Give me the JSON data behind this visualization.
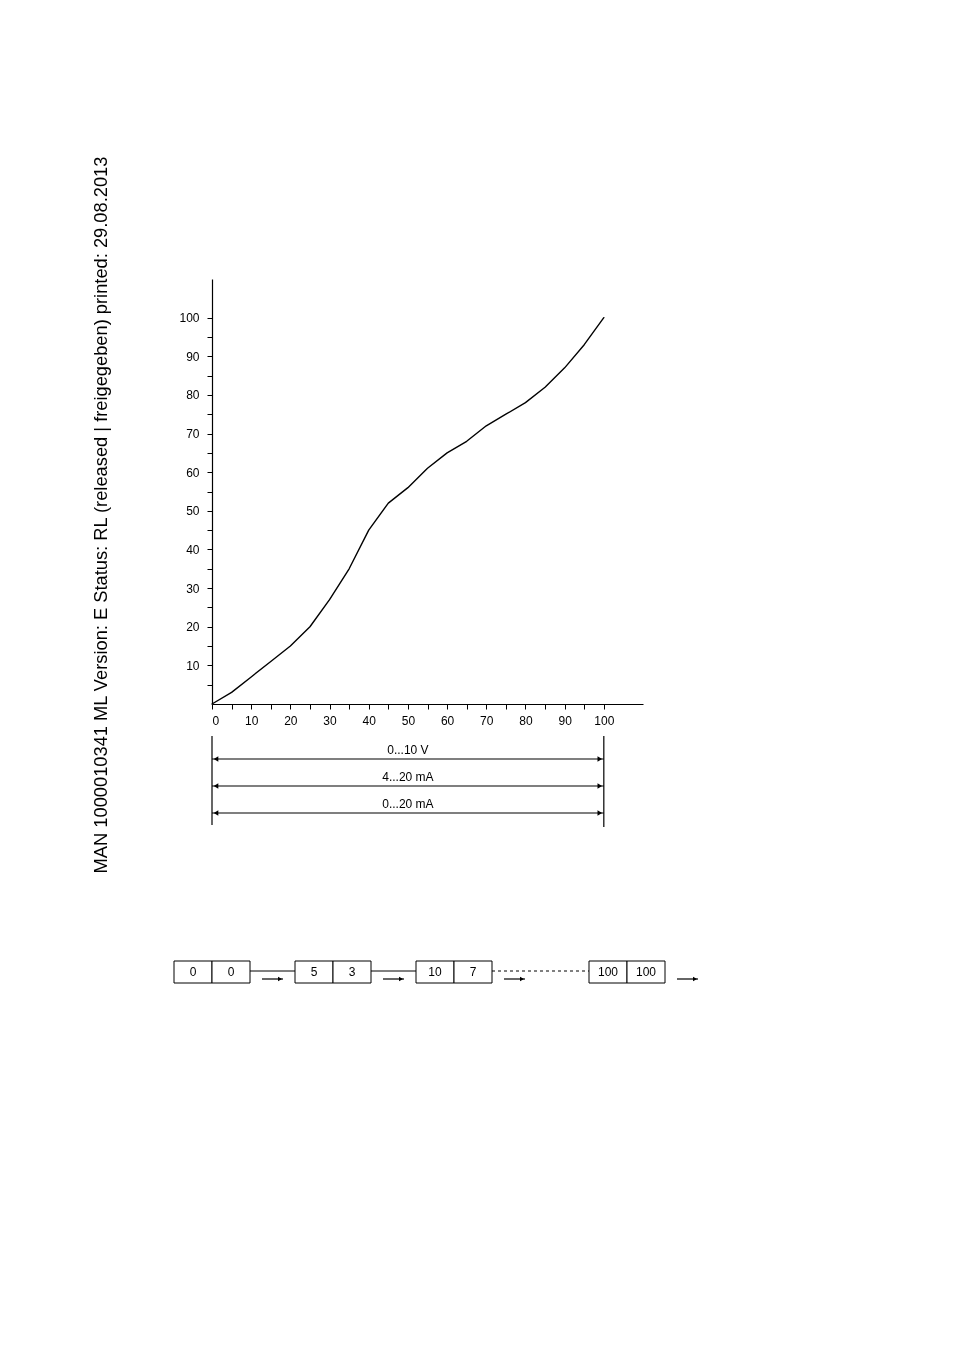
{
  "chart_data": {
    "type": "line",
    "x": [
      0,
      5,
      10,
      15,
      20,
      25,
      30,
      35,
      40,
      45,
      50,
      55,
      60,
      65,
      70,
      75,
      80,
      85,
      90,
      95,
      100
    ],
    "values": [
      0,
      3,
      7,
      11,
      15,
      20,
      27,
      35,
      45,
      52,
      56,
      61,
      65,
      68,
      72,
      75,
      78,
      82,
      87,
      93,
      100
    ],
    "color": "#000000",
    "xlim": [
      0,
      110
    ],
    "ylim": [
      0,
      110
    ],
    "xticks": [
      0,
      {
        "value": 5,
        "label": null
      },
      10,
      {
        "value": 15,
        "label": null
      },
      20,
      {
        "value": 25,
        "label": null
      },
      30,
      {
        "value": 35,
        "label": null
      },
      40,
      {
        "value": 45,
        "label": null
      },
      50,
      {
        "value": 55,
        "label": null
      },
      60,
      {
        "value": 65,
        "label": null
      },
      70,
      {
        "value": 75,
        "label": null
      },
      80,
      {
        "value": 85,
        "label": null
      },
      90,
      {
        "value": 95,
        "label": null
      },
      100
    ],
    "yticks": [
      {
        "value": 5,
        "label": null
      },
      10,
      {
        "value": 15,
        "label": null
      },
      20,
      {
        "value": 25,
        "label": null
      },
      30,
      {
        "value": 35,
        "label": null
      },
      40,
      {
        "value": 45,
        "label": null
      },
      50,
      {
        "value": 55,
        "label": null
      },
      60,
      {
        "value": 65,
        "label": null
      },
      70,
      {
        "value": 75,
        "label": null
      },
      80,
      {
        "value": 85,
        "label": null
      },
      90,
      {
        "value": 95,
        "label": null
      },
      100
    ],
    "grid": false,
    "legend": false,
    "marker": "none",
    "line_style": "solid",
    "annotations": [
      "0...10 V",
      "4...20 mA",
      "0...20 mA",
      "0",
      "0",
      "5",
      "3",
      "10",
      "7",
      "100",
      "100",
      "MAN 1000010341 ML Version: E Status: RL (released | freigegeben) printed: 29.08.2013"
    ]
  }
}
